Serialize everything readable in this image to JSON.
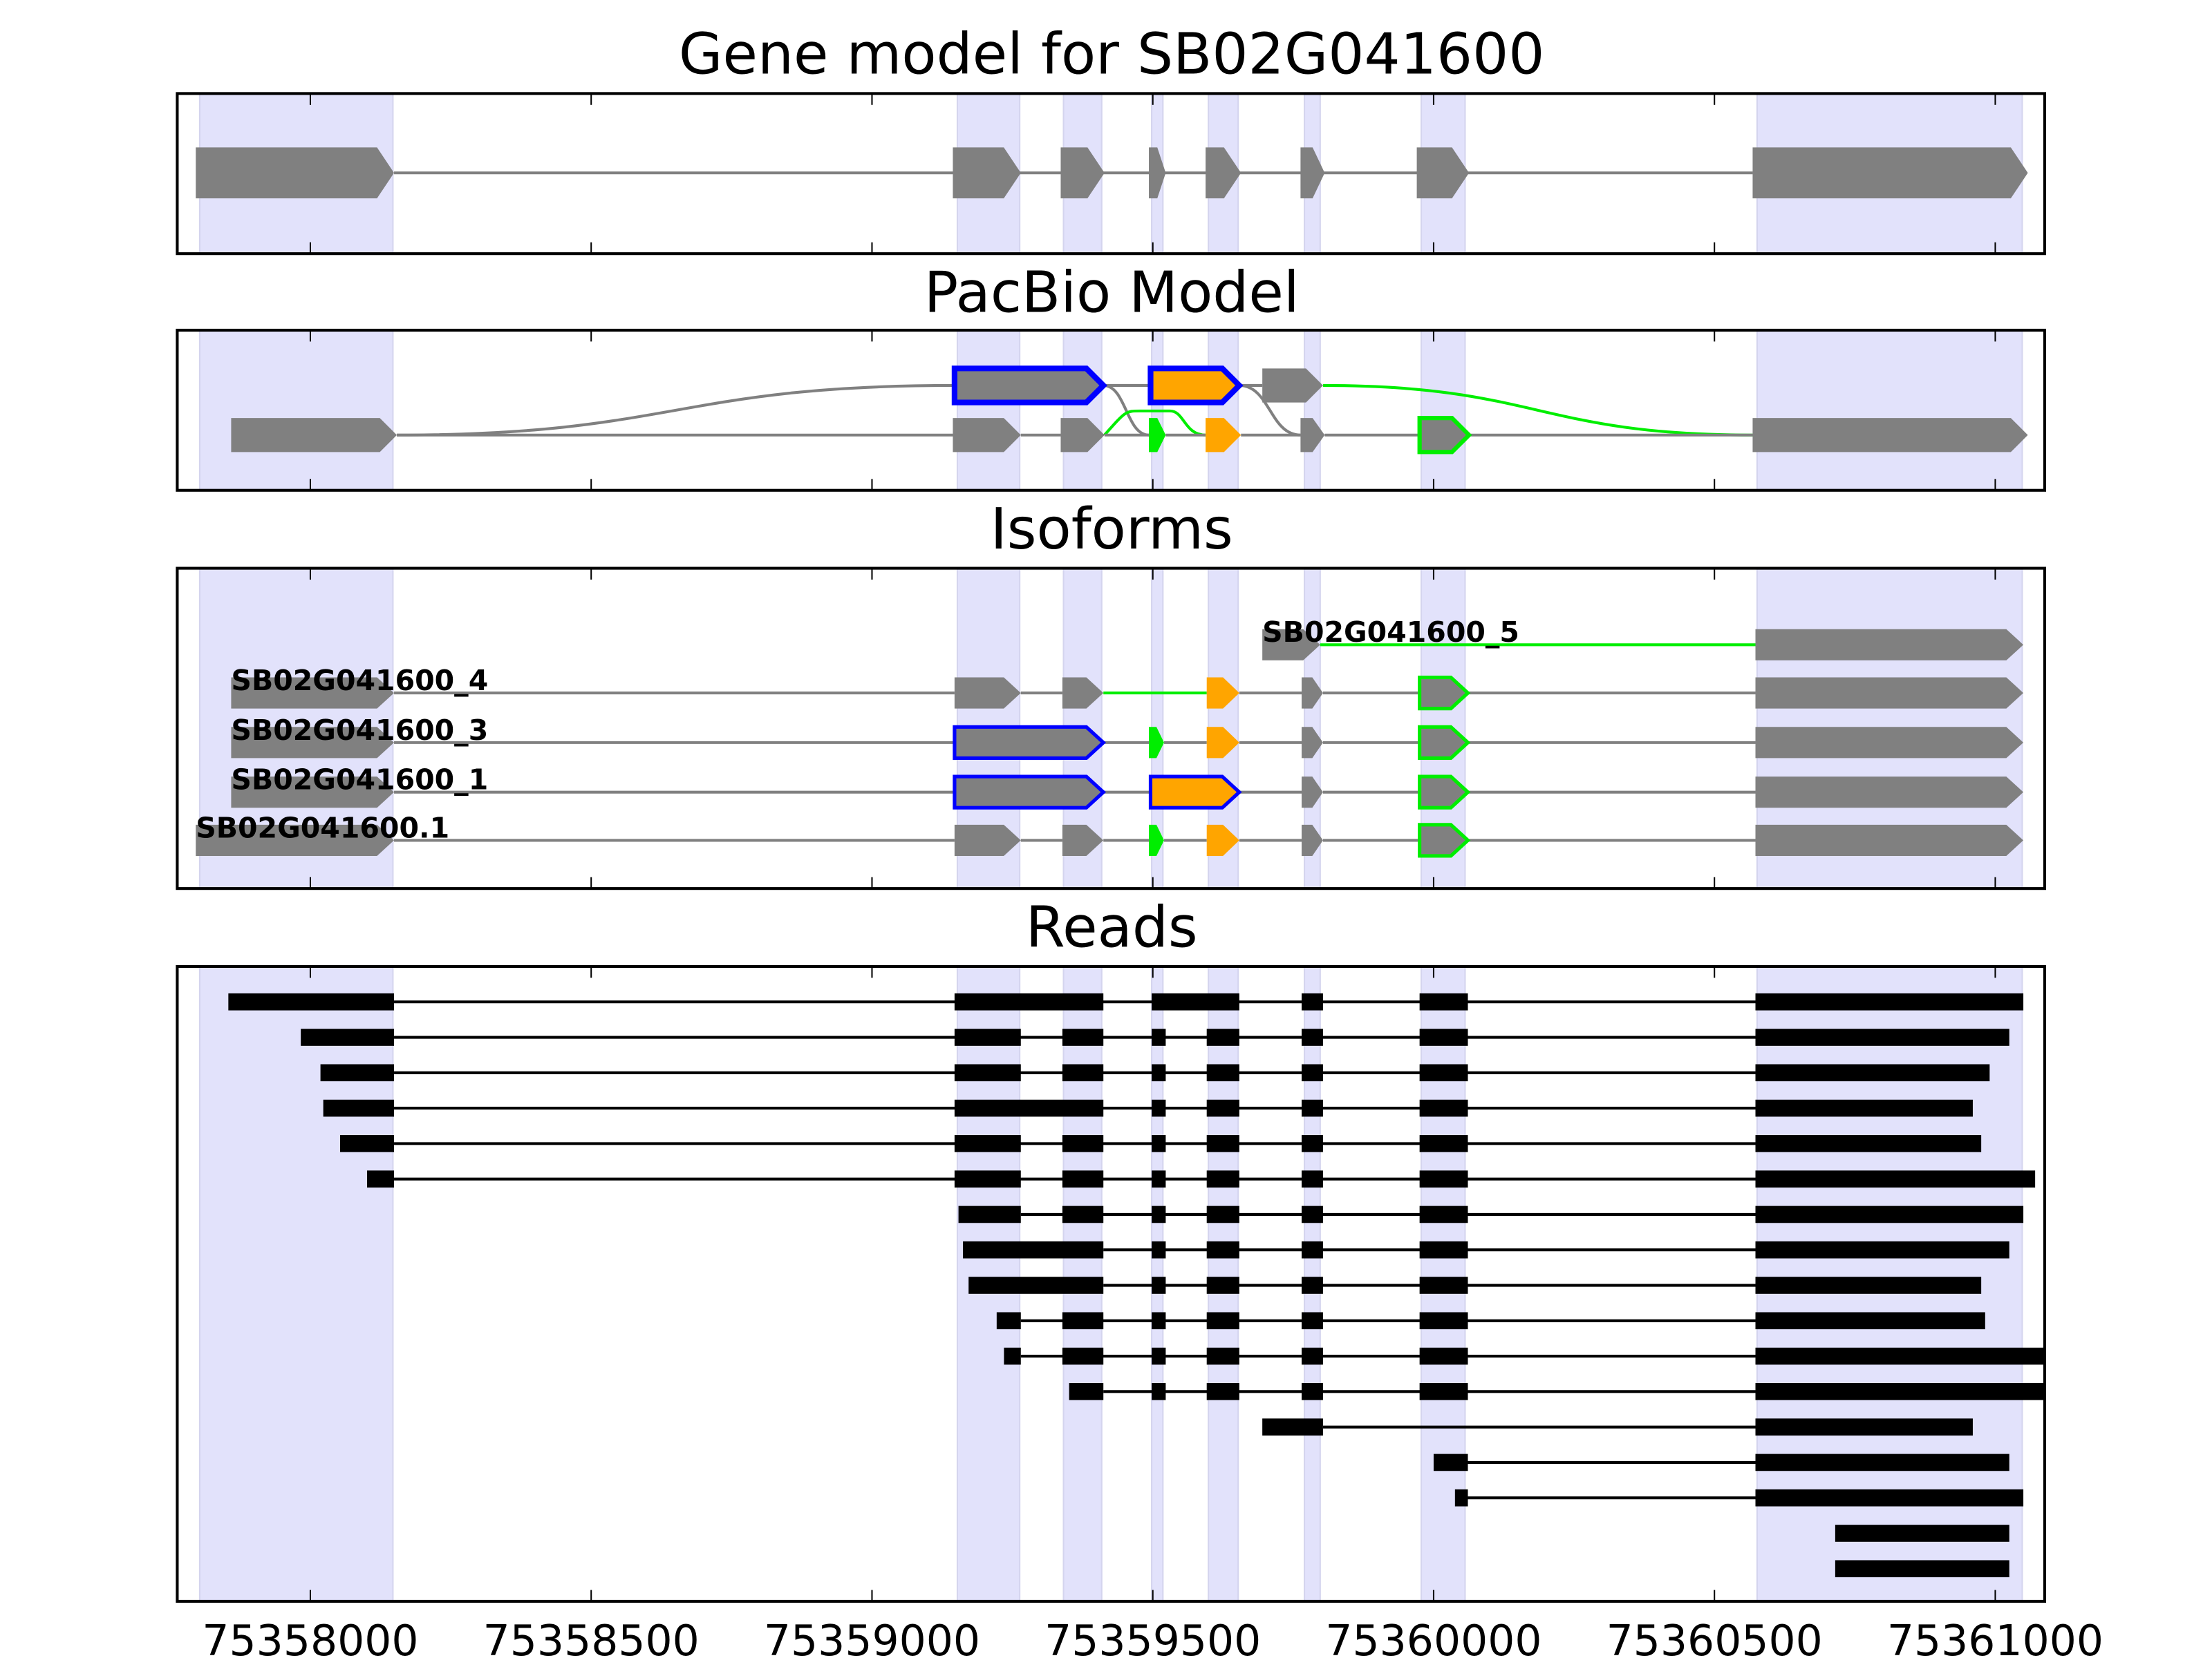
{
  "xlim": [
    75357763,
    75361088
  ],
  "ticks": [
    "75358000",
    "75358500",
    "75359000",
    "75359500",
    "75360000",
    "75360500",
    "75361000"
  ],
  "colors": {
    "exon": "#808080",
    "intron": "#808080",
    "shade": "#e2e2fb",
    "green": "#00ee00",
    "orange": "#ffa500",
    "blue": "#0000ff",
    "read": "#000000"
  },
  "shaded_regions": [
    [
      75357803,
      75358147
    ],
    [
      75359152,
      75359263
    ],
    [
      75359341,
      75359409
    ],
    [
      75359498,
      75359518
    ],
    [
      75359599,
      75359652
    ],
    [
      75359770,
      75359798
    ],
    [
      75359978,
      75360056
    ],
    [
      75360576,
      75361048
    ]
  ],
  "gene_model": {
    "title": "Gene model for SB02G041600",
    "exons": [
      [
        75357796,
        75358149
      ],
      [
        75359144,
        75359265
      ],
      [
        75359336,
        75359414
      ],
      [
        75359493,
        75359523
      ],
      [
        75359594,
        75359657
      ],
      [
        75359763,
        75359806
      ],
      [
        75359970,
        75360063
      ],
      [
        75360568,
        75361058
      ]
    ]
  },
  "pacbio": {
    "title": "PacBio Model",
    "rows": [
      {
        "exons": [
          {
            "s": 75359147,
            "e": 75359412,
            "fill": "gray",
            "stroke": "blue",
            "sw": 4
          },
          {
            "s": 75359496,
            "e": 75359654,
            "fill": "orange",
            "stroke": "blue",
            "sw": 4
          },
          {
            "s": 75359695,
            "e": 75359803,
            "fill": "gray"
          }
        ],
        "introns": [
          [
            75359412,
            75359496,
            "gray"
          ],
          [
            75359654,
            75359695,
            "gray"
          ]
        ]
      },
      {
        "exons": [
          {
            "s": 75357859,
            "e": 75358154,
            "fill": "gray"
          },
          {
            "s": 75359144,
            "e": 75359265,
            "fill": "gray"
          },
          {
            "s": 75359336,
            "e": 75359414,
            "fill": "gray"
          },
          {
            "s": 75359493,
            "e": 75359523,
            "fill": "green"
          },
          {
            "s": 75359594,
            "e": 75359657,
            "fill": "orange"
          },
          {
            "s": 75359763,
            "e": 75359806,
            "fill": "gray"
          },
          {
            "s": 75359975,
            "e": 75360063,
            "fill": "gray",
            "stroke": "green",
            "sw": 3
          },
          {
            "s": 75360568,
            "e": 75361058,
            "fill": "gray"
          }
        ],
        "introns": [
          [
            75358154,
            75359144,
            "gray"
          ],
          [
            75359265,
            75359336,
            "gray"
          ],
          [
            75359414,
            75359493,
            "gray"
          ],
          [
            75359523,
            75359594,
            "gray"
          ],
          [
            75359657,
            75359763,
            "gray"
          ],
          [
            75359806,
            75359975,
            "gray"
          ],
          [
            75360063,
            75360568,
            "gray"
          ]
        ]
      }
    ],
    "curves": [
      {
        "from": [
          75358154,
          1
        ],
        "to": [
          75359147,
          0
        ],
        "color": "gray"
      },
      {
        "from": [
          75359412,
          0
        ],
        "to": [
          75359493,
          1
        ],
        "color": "gray"
      },
      {
        "from": [
          75359654,
          0
        ],
        "to": [
          75359763,
          1
        ],
        "color": "gray"
      },
      {
        "from": [
          75359803,
          0
        ],
        "to": [
          75360568,
          1
        ],
        "color": "green"
      },
      {
        "from": [
          75359414,
          1
        ],
        "to": [
          75359594,
          1
        ],
        "color": "green",
        "arch": true
      }
    ]
  },
  "isoforms": {
    "title": "Isoforms",
    "rows": [
      {
        "label": "SB02G041600_5",
        "label_at": 75359695,
        "exons": [
          {
            "s": 75359695,
            "e": 75359798,
            "fill": "gray"
          },
          {
            "s": 75360573,
            "e": 75361050,
            "fill": "gray"
          }
        ],
        "introns": [
          [
            75359798,
            75360573,
            "green"
          ]
        ]
      },
      {
        "label": "SB02G041600_4",
        "label_at": 75357859,
        "exons": [
          {
            "s": 75357859,
            "e": 75358149,
            "fill": "gray"
          },
          {
            "s": 75359147,
            "e": 75359265,
            "fill": "gray"
          },
          {
            "s": 75359339,
            "e": 75359412,
            "fill": "gray"
          },
          {
            "s": 75359596,
            "e": 75359654,
            "fill": "orange"
          },
          {
            "s": 75359765,
            "e": 75359803,
            "fill": "gray"
          },
          {
            "s": 75359975,
            "e": 75360061,
            "fill": "gray",
            "stroke": "green",
            "sw": 2.5
          },
          {
            "s": 75360573,
            "e": 75361050,
            "fill": "gray"
          }
        ],
        "introns": [
          [
            75358149,
            75359147,
            "gray"
          ],
          [
            75359265,
            75359339,
            "gray"
          ],
          [
            75359412,
            75359596,
            "green"
          ],
          [
            75359654,
            75359765,
            "gray"
          ],
          [
            75359803,
            75359975,
            "gray"
          ],
          [
            75360061,
            75360573,
            "gray"
          ]
        ]
      },
      {
        "label": "SB02G041600_3",
        "label_at": 75357859,
        "exons": [
          {
            "s": 75357859,
            "e": 75358149,
            "fill": "gray"
          },
          {
            "s": 75359147,
            "e": 75359412,
            "fill": "gray",
            "stroke": "blue",
            "sw": 2.5
          },
          {
            "s": 75359493,
            "e": 75359520,
            "fill": "green"
          },
          {
            "s": 75359596,
            "e": 75359654,
            "fill": "orange"
          },
          {
            "s": 75359765,
            "e": 75359803,
            "fill": "gray"
          },
          {
            "s": 75359975,
            "e": 75360061,
            "fill": "gray",
            "stroke": "green",
            "sw": 2.5
          },
          {
            "s": 75360573,
            "e": 75361050,
            "fill": "gray"
          }
        ],
        "introns": [
          [
            75358149,
            75359147,
            "gray"
          ],
          [
            75359412,
            75359493,
            "gray"
          ],
          [
            75359520,
            75359596,
            "gray"
          ],
          [
            75359654,
            75359765,
            "gray"
          ],
          [
            75359803,
            75359975,
            "gray"
          ],
          [
            75360061,
            75360573,
            "gray"
          ]
        ]
      },
      {
        "label": "SB02G041600_1",
        "label_at": 75357859,
        "exons": [
          {
            "s": 75357859,
            "e": 75358149,
            "fill": "gray"
          },
          {
            "s": 75359147,
            "e": 75359412,
            "fill": "gray",
            "stroke": "blue",
            "sw": 2.5
          },
          {
            "s": 75359496,
            "e": 75359654,
            "fill": "orange",
            "stroke": "blue",
            "sw": 2.5
          },
          {
            "s": 75359765,
            "e": 75359803,
            "fill": "gray"
          },
          {
            "s": 75359975,
            "e": 75360061,
            "fill": "gray",
            "stroke": "green",
            "sw": 2.5
          },
          {
            "s": 75360573,
            "e": 75361050,
            "fill": "gray"
          }
        ],
        "introns": [
          [
            75358149,
            75359147,
            "gray"
          ],
          [
            75359412,
            75359496,
            "gray"
          ],
          [
            75359654,
            75359765,
            "gray"
          ],
          [
            75359803,
            75359975,
            "gray"
          ],
          [
            75360061,
            75360573,
            "gray"
          ]
        ]
      },
      {
        "label": "SB02G041600.1",
        "label_at": 75357796,
        "exons": [
          {
            "s": 75357796,
            "e": 75358149,
            "fill": "gray"
          },
          {
            "s": 75359147,
            "e": 75359265,
            "fill": "gray"
          },
          {
            "s": 75359339,
            "e": 75359412,
            "fill": "gray"
          },
          {
            "s": 75359493,
            "e": 75359520,
            "fill": "green"
          },
          {
            "s": 75359596,
            "e": 75359654,
            "fill": "orange"
          },
          {
            "s": 75359765,
            "e": 75359803,
            "fill": "gray"
          },
          {
            "s": 75359975,
            "e": 75360061,
            "fill": "gray",
            "stroke": "green",
            "sw": 2.5
          },
          {
            "s": 75360573,
            "e": 75361050,
            "fill": "gray"
          }
        ],
        "introns": [
          [
            75358149,
            75359147,
            "gray"
          ],
          [
            75359265,
            75359339,
            "gray"
          ],
          [
            75359412,
            75359493,
            "gray"
          ],
          [
            75359520,
            75359596,
            "gray"
          ],
          [
            75359654,
            75359765,
            "gray"
          ],
          [
            75359803,
            75359975,
            "gray"
          ],
          [
            75360061,
            75360573,
            "gray"
          ]
        ]
      }
    ]
  },
  "reads": {
    "title": "Reads",
    "items": [
      [
        [
          75357854,
          75358149
        ],
        [
          75359147,
          75359412
        ],
        [
          75359498,
          75359654
        ],
        [
          75359765,
          75359803
        ],
        [
          75359975,
          75360061
        ],
        [
          75360573,
          75361050
        ]
      ],
      [
        [
          75357983,
          75358149
        ],
        [
          75359147,
          75359265
        ],
        [
          75359339,
          75359412
        ],
        [
          75359498,
          75359523
        ],
        [
          75359596,
          75359654
        ],
        [
          75359765,
          75359803
        ],
        [
          75359975,
          75360061
        ],
        [
          75360573,
          75361025
        ]
      ],
      [
        [
          75358018,
          75358149
        ],
        [
          75359147,
          75359265
        ],
        [
          75359339,
          75359412
        ],
        [
          75359498,
          75359523
        ],
        [
          75359596,
          75359654
        ],
        [
          75359765,
          75359803
        ],
        [
          75359975,
          75360061
        ],
        [
          75360573,
          75360990
        ]
      ],
      [
        [
          75358023,
          75358149
        ],
        [
          75359147,
          75359412
        ],
        [
          75359498,
          75359523
        ],
        [
          75359596,
          75359654
        ],
        [
          75359765,
          75359803
        ],
        [
          75359975,
          75360061
        ],
        [
          75360573,
          75360960
        ]
      ],
      [
        [
          75358053,
          75358149
        ],
        [
          75359147,
          75359265
        ],
        [
          75359339,
          75359412
        ],
        [
          75359498,
          75359523
        ],
        [
          75359596,
          75359654
        ],
        [
          75359765,
          75359803
        ],
        [
          75359975,
          75360061
        ],
        [
          75360573,
          75360975
        ]
      ],
      [
        [
          75358101,
          75358149
        ],
        [
          75359147,
          75359265
        ],
        [
          75359339,
          75359412
        ],
        [
          75359498,
          75359523
        ],
        [
          75359596,
          75359654
        ],
        [
          75359765,
          75359803
        ],
        [
          75359975,
          75360061
        ],
        [
          75360573,
          75361071
        ]
      ],
      [
        [
          75359154,
          75359265
        ],
        [
          75359339,
          75359412
        ],
        [
          75359498,
          75359523
        ],
        [
          75359596,
          75359654
        ],
        [
          75359765,
          75359803
        ],
        [
          75359975,
          75360061
        ],
        [
          75360573,
          75361050
        ]
      ],
      [
        [
          75359162,
          75359412
        ],
        [
          75359498,
          75359523
        ],
        [
          75359596,
          75359654
        ],
        [
          75359765,
          75359803
        ],
        [
          75359975,
          75360061
        ],
        [
          75360573,
          75361025
        ]
      ],
      [
        [
          75359172,
          75359412
        ],
        [
          75359498,
          75359523
        ],
        [
          75359596,
          75359654
        ],
        [
          75359765,
          75359803
        ],
        [
          75359975,
          75360061
        ],
        [
          75360573,
          75360975
        ]
      ],
      [
        [
          75359222,
          75359265
        ],
        [
          75359339,
          75359412
        ],
        [
          75359498,
          75359523
        ],
        [
          75359596,
          75359654
        ],
        [
          75359765,
          75359803
        ],
        [
          75359975,
          75360061
        ],
        [
          75360573,
          75360982
        ]
      ],
      [
        [
          75359235,
          75359265
        ],
        [
          75359339,
          75359412
        ],
        [
          75359498,
          75359523
        ],
        [
          75359596,
          75359654
        ],
        [
          75359765,
          75359803
        ],
        [
          75359975,
          75360061
        ],
        [
          75360573,
          75361088
        ]
      ],
      [
        [
          75359351,
          75359412
        ],
        [
          75359498,
          75359523
        ],
        [
          75359596,
          75359654
        ],
        [
          75359765,
          75359803
        ],
        [
          75359975,
          75360061
        ],
        [
          75360573,
          75361088
        ]
      ],
      [
        [
          75359695,
          75359803
        ],
        [
          75360573,
          75360960
        ]
      ],
      [
        [
          75360000,
          75360061
        ],
        [
          75360573,
          75361025
        ]
      ],
      [
        [
          75360038,
          75360061
        ],
        [
          75360573,
          75361050
        ]
      ],
      [
        [
          75360715,
          75361025
        ]
      ],
      [
        [
          75360715,
          75361025
        ]
      ]
    ]
  }
}
